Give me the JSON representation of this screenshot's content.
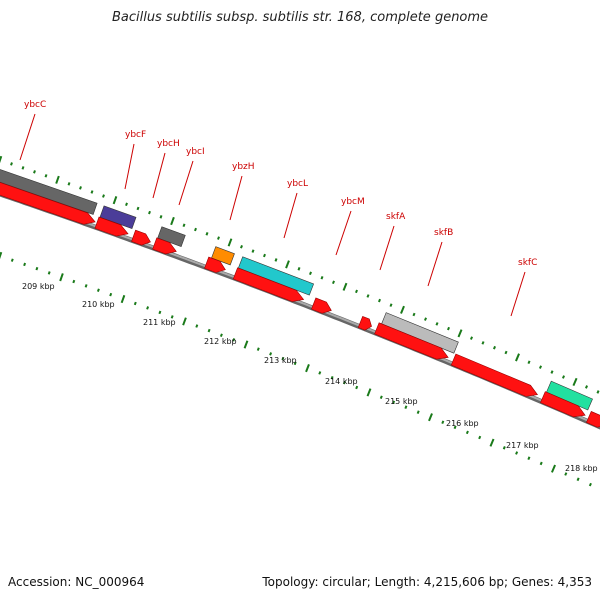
{
  "title": "Bacillus subtilis subsp. subtilis str. 168, complete genome",
  "footer": {
    "accession": "Accession: NC_000964",
    "topology": "Topology: circular; Length: 4,215,606 bp; Genes: 4,353"
  },
  "gene_labels": [
    "ybcC",
    "ybcF",
    "ybcH",
    "ybcI",
    "ybzH",
    "ybcL",
    "ybcM",
    "skfA",
    "skfB",
    "skfC"
  ],
  "scale_labels": [
    "209 kbp",
    "210 kbp",
    "211 kbp",
    "212 kbp",
    "213 kbp",
    "214 kbp",
    "215 kbp",
    "216 kbp",
    "217 kbp",
    "218 kbp"
  ],
  "colors": {
    "cds_forward": "#ff1111",
    "label_red": "#cc0000",
    "backbone": "#888888",
    "tick_green": "#1a7a1a",
    "gene_gray": "#666666",
    "gene_purple": "#4b3d99",
    "gene_orange": "#ff8c00",
    "gene_cyan": "#22c8cc",
    "gene_lightgray": "#bbbbbb",
    "gene_mint": "#22e0a0"
  }
}
